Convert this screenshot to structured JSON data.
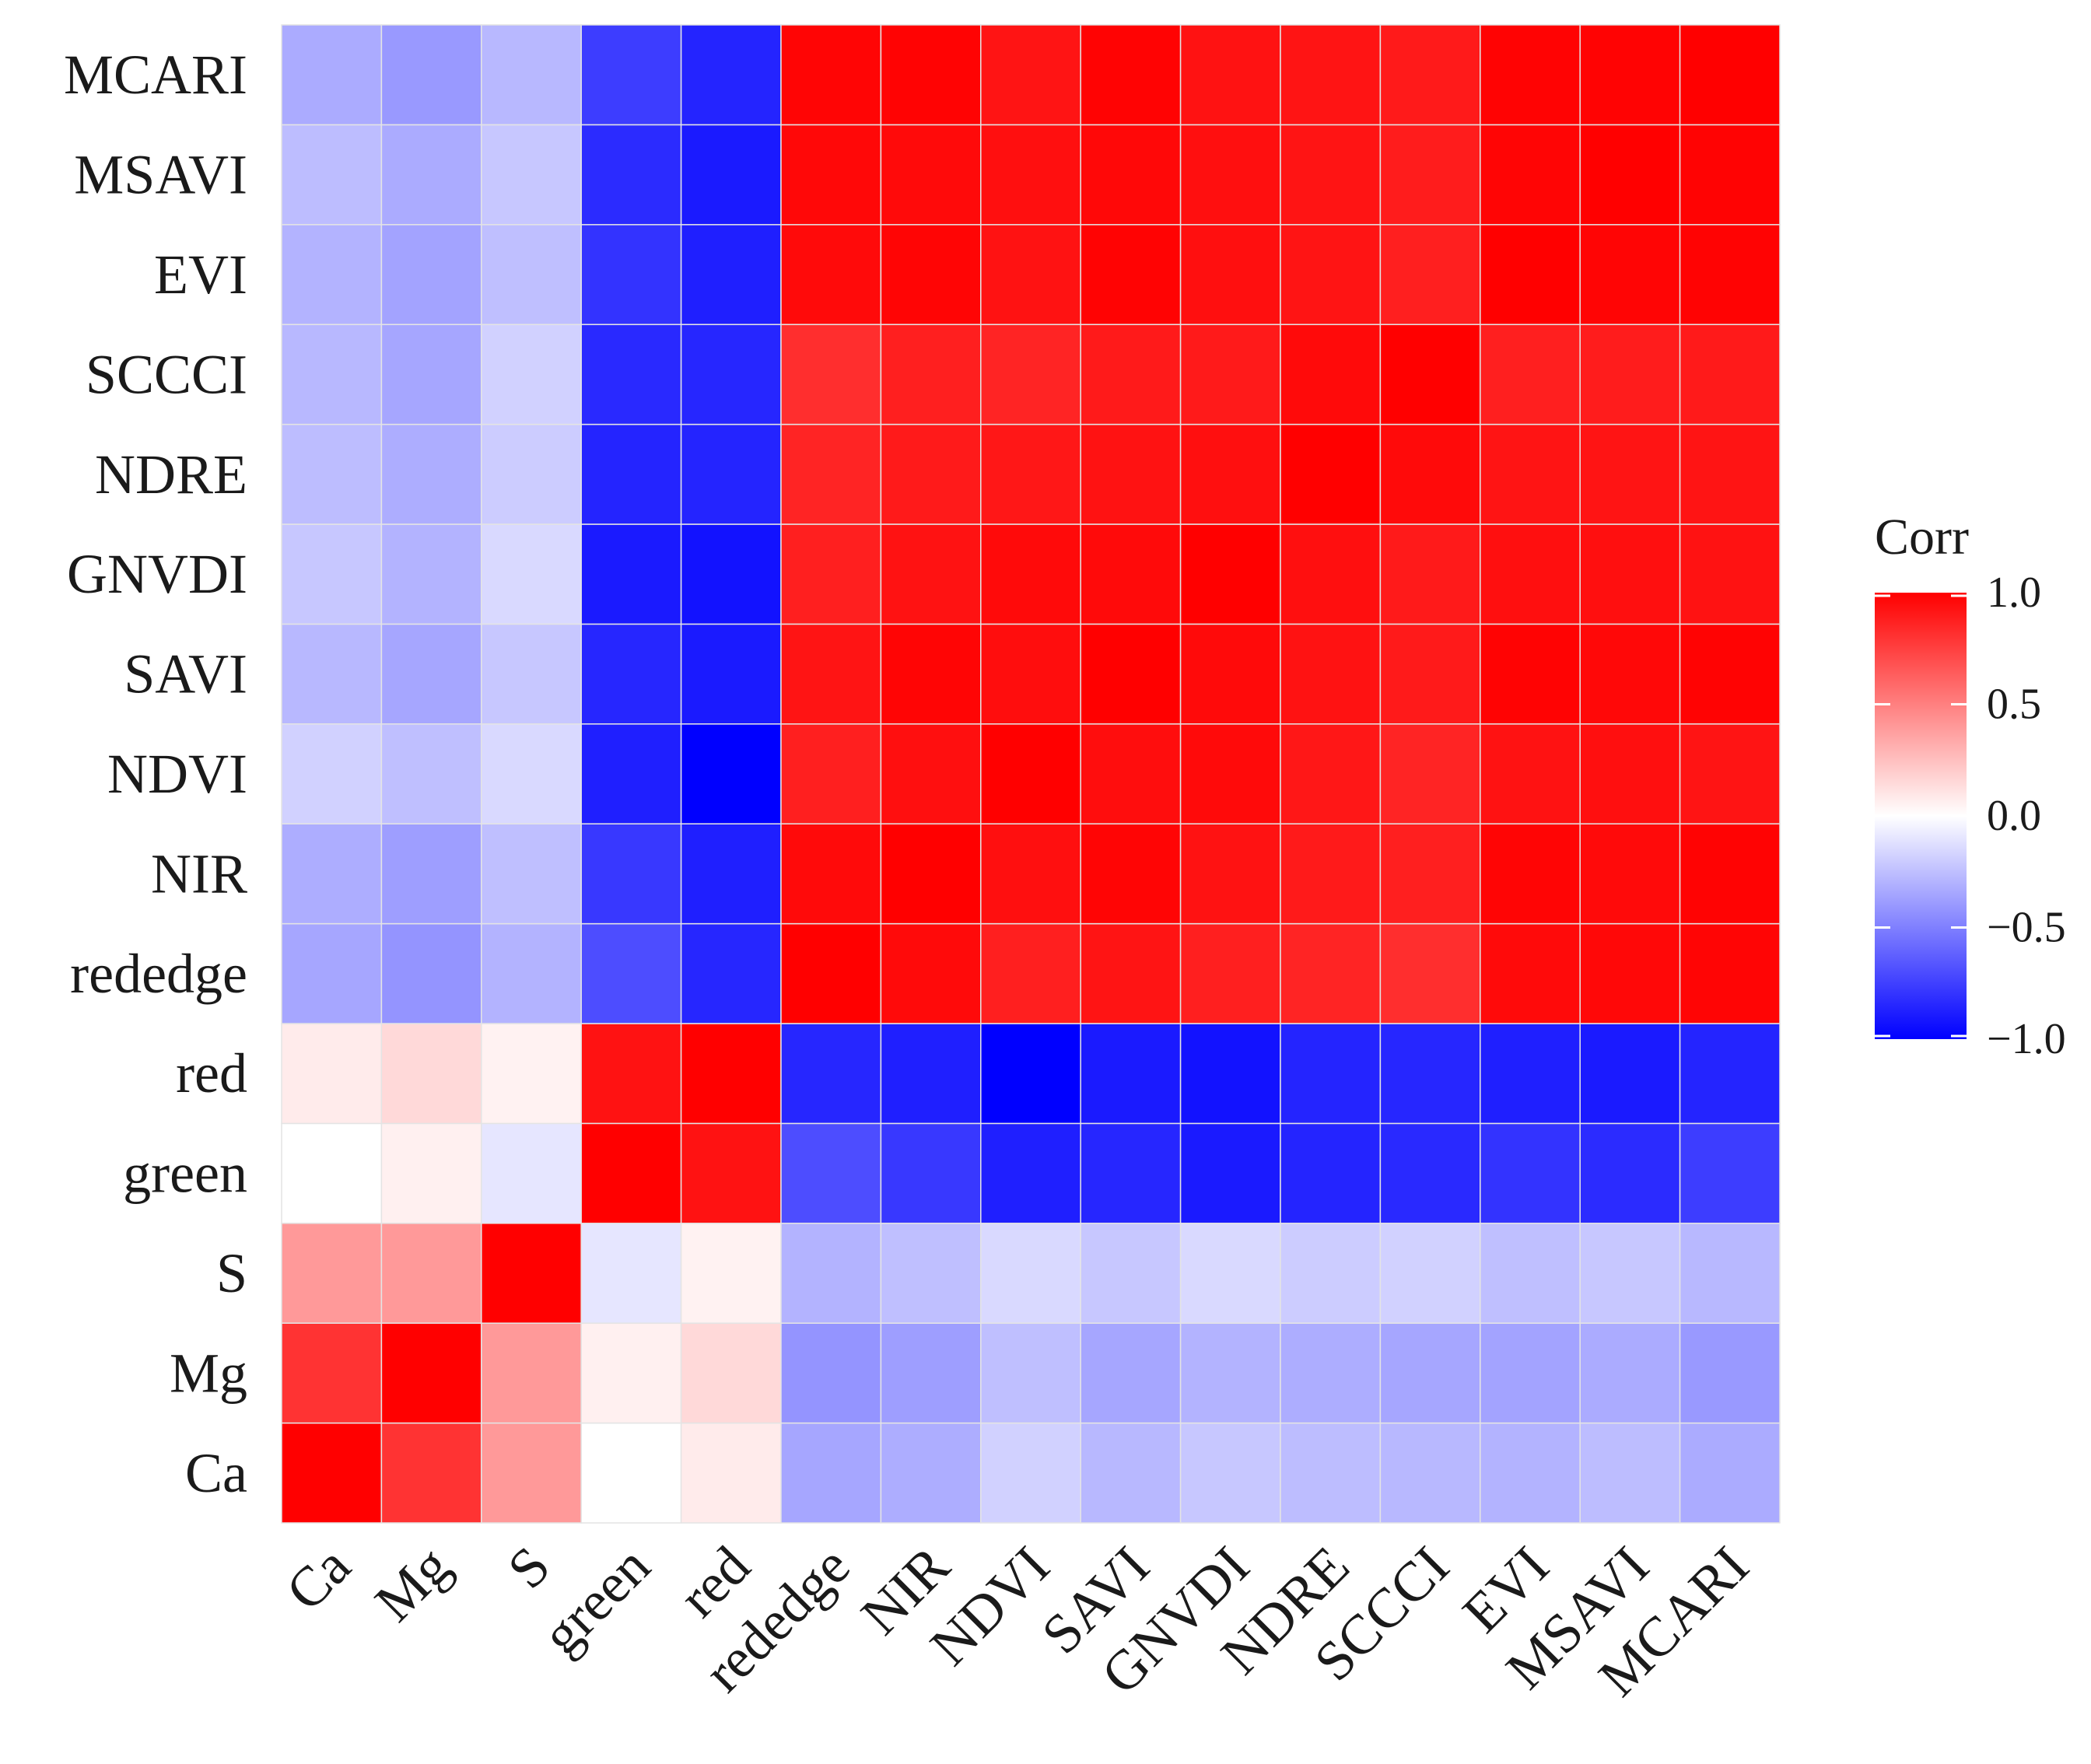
{
  "chart_data": {
    "type": "heatmap",
    "x": [
      "Ca",
      "Mg",
      "S",
      "green",
      "red",
      "rededge",
      "NIR",
      "NDVI",
      "SAVI",
      "GNVDI",
      "NDRE",
      "SCCCI",
      "EVI",
      "MSAVI",
      "MCARI"
    ],
    "y": [
      "Ca",
      "Mg",
      "S",
      "green",
      "red",
      "rededge",
      "NIR",
      "NDVI",
      "SAVI",
      "GNVDI",
      "NDRE",
      "SCCCI",
      "EVI",
      "MSAVI",
      "MCARI"
    ],
    "values": [
      [
        1.0,
        0.8,
        0.4,
        0.0,
        0.08,
        -0.35,
        -0.32,
        -0.18,
        -0.28,
        -0.22,
        -0.26,
        -0.28,
        -0.3,
        -0.26,
        -0.33
      ],
      [
        0.8,
        1.0,
        0.4,
        0.06,
        0.15,
        -0.42,
        -0.38,
        -0.25,
        -0.35,
        -0.3,
        -0.32,
        -0.35,
        -0.36,
        -0.33,
        -0.4
      ],
      [
        0.4,
        0.4,
        1.0,
        -0.1,
        0.05,
        -0.3,
        -0.25,
        -0.15,
        -0.22,
        -0.15,
        -0.2,
        -0.18,
        -0.25,
        -0.22,
        -0.28
      ],
      [
        0.0,
        0.06,
        -0.1,
        1.0,
        0.93,
        -0.7,
        -0.78,
        -0.88,
        -0.85,
        -0.9,
        -0.86,
        -0.84,
        -0.8,
        -0.83,
        -0.76
      ],
      [
        0.08,
        0.15,
        0.05,
        0.93,
        1.0,
        -0.85,
        -0.88,
        -1.0,
        -0.9,
        -0.93,
        -0.86,
        -0.85,
        -0.88,
        -0.9,
        -0.86
      ],
      [
        -0.35,
        -0.42,
        -0.3,
        -0.7,
        -0.85,
        1.0,
        0.96,
        0.88,
        0.92,
        0.88,
        0.86,
        0.82,
        0.96,
        0.97,
        0.98
      ],
      [
        -0.32,
        -0.38,
        -0.25,
        -0.78,
        -0.88,
        0.96,
        1.0,
        0.94,
        0.98,
        0.93,
        0.9,
        0.88,
        0.98,
        0.96,
        0.99
      ],
      [
        -0.18,
        -0.25,
        -0.15,
        -0.88,
        -1.0,
        0.88,
        0.94,
        1.0,
        0.95,
        0.96,
        0.91,
        0.86,
        0.93,
        0.94,
        0.92
      ],
      [
        -0.28,
        -0.35,
        -0.22,
        -0.85,
        -0.9,
        0.92,
        0.98,
        0.95,
        1.0,
        0.96,
        0.93,
        0.9,
        0.99,
        0.97,
        0.99
      ],
      [
        -0.22,
        -0.3,
        -0.15,
        -0.9,
        -0.93,
        0.88,
        0.93,
        0.96,
        0.96,
        1.0,
        0.94,
        0.9,
        0.94,
        0.94,
        0.93
      ],
      [
        -0.26,
        -0.32,
        -0.2,
        -0.86,
        -0.86,
        0.86,
        0.9,
        0.91,
        0.93,
        0.94,
        1.0,
        0.96,
        0.92,
        0.92,
        0.92
      ],
      [
        -0.28,
        -0.35,
        -0.18,
        -0.84,
        -0.85,
        0.82,
        0.88,
        0.86,
        0.9,
        0.9,
        0.96,
        1.0,
        0.88,
        0.89,
        0.9
      ],
      [
        -0.3,
        -0.36,
        -0.25,
        -0.8,
        -0.88,
        0.96,
        0.98,
        0.93,
        0.99,
        0.94,
        0.92,
        0.88,
        1.0,
        0.98,
        0.99
      ],
      [
        -0.26,
        -0.33,
        -0.22,
        -0.83,
        -0.9,
        0.97,
        0.96,
        0.94,
        0.97,
        0.94,
        0.92,
        0.89,
        0.98,
        1.0,
        0.99
      ],
      [
        -0.33,
        -0.4,
        -0.28,
        -0.76,
        -0.86,
        0.98,
        0.99,
        0.92,
        0.99,
        0.93,
        0.92,
        0.9,
        0.99,
        0.99,
        1.0
      ]
    ],
    "color_scale": {
      "low": "#0000ff",
      "mid": "#ffffff",
      "high": "#ff0000",
      "limits": [
        -1,
        1
      ]
    },
    "legend": {
      "title": "Corr",
      "ticks": [
        1.0,
        0.5,
        0.0,
        -0.5,
        -1.0
      ],
      "tick_labels": [
        "1.0",
        "0.5",
        "0.0",
        "−0.5",
        "−1.0"
      ],
      "position": "right"
    },
    "grid": true,
    "title": "",
    "xlabel": "",
    "ylabel": ""
  }
}
